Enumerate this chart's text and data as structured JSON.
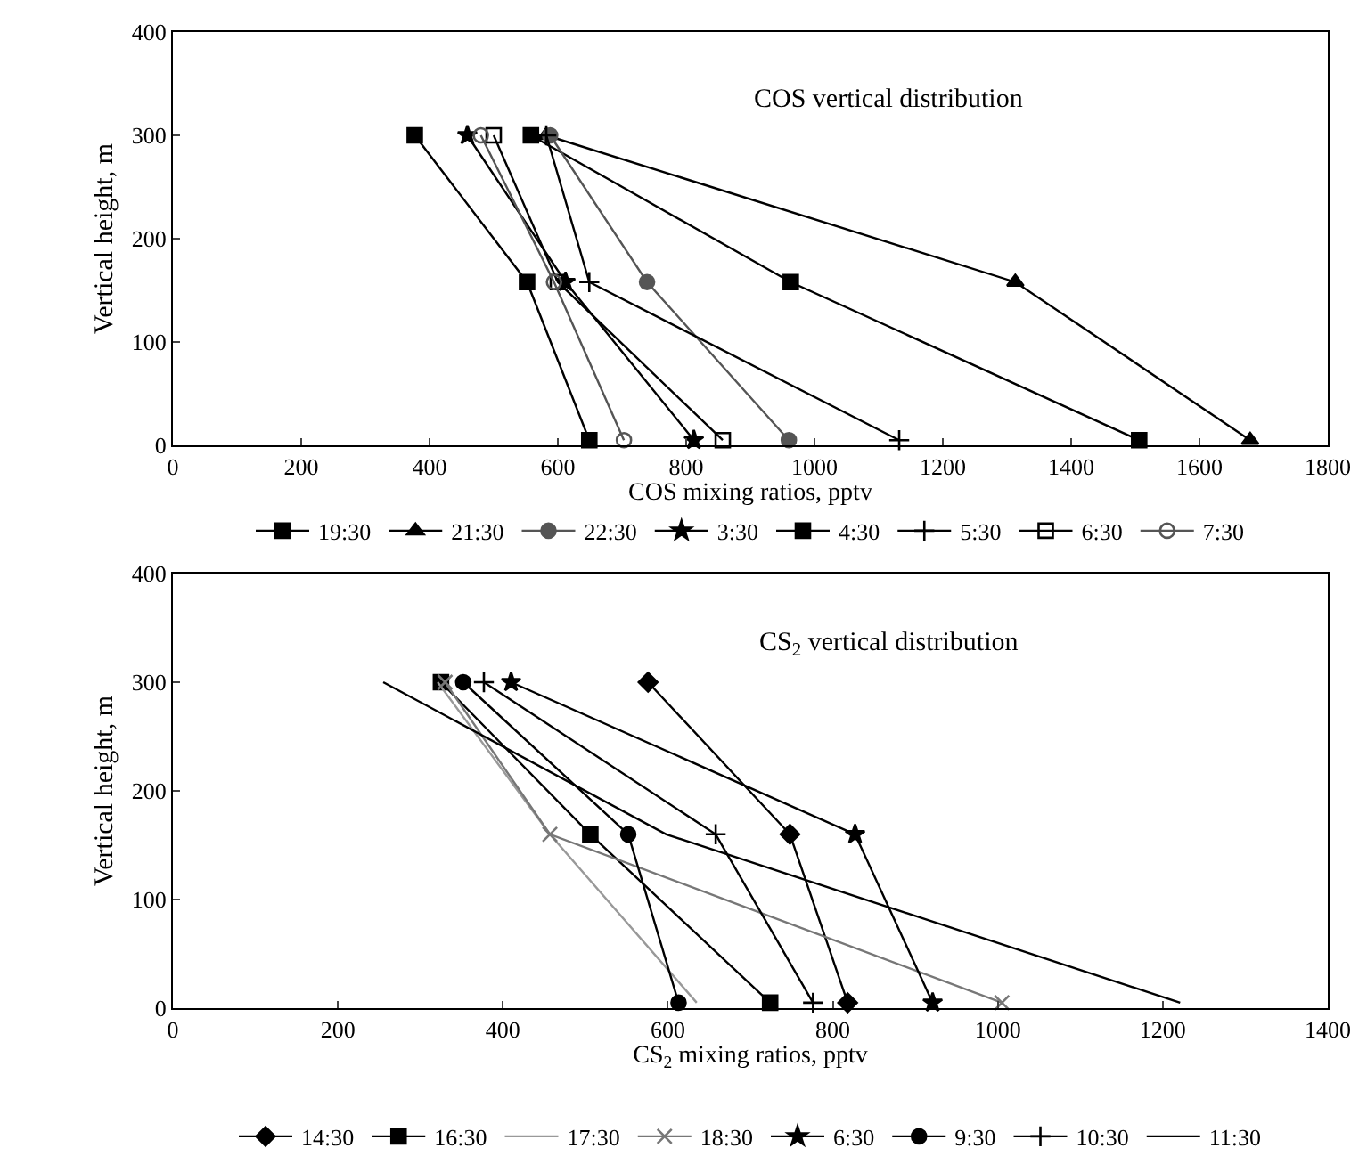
{
  "chart_data": [
    {
      "type": "line",
      "title": "COS vertical distribution",
      "xlabel": "COS mixing ratios, pptv",
      "ylabel": "Vertical height, m",
      "xlim": [
        0,
        1800
      ],
      "xticks": [
        0,
        200,
        400,
        600,
        800,
        1000,
        1200,
        1400,
        1600,
        1800
      ],
      "ylim": [
        0,
        400
      ],
      "yticks": [
        0,
        100,
        200,
        300,
        400
      ],
      "legend": "bottom",
      "line_style": "solid",
      "series": [
        {
          "name": "19:30",
          "color": "#000000",
          "marker": "square",
          "x": [
            558,
            963,
            1506
          ],
          "values": [
            300,
            158,
            5
          ]
        },
        {
          "name": "21:30",
          "color": "#000000",
          "marker": "triangle",
          "x": [
            582,
            1313,
            1679
          ],
          "values": [
            300,
            158,
            5
          ]
        },
        {
          "name": "22:30",
          "color": "#555555",
          "marker": "circle",
          "x": [
            588,
            739,
            960
          ],
          "values": [
            300,
            158,
            5
          ]
        },
        {
          "name": "3:30",
          "color": "#000000",
          "marker": "star",
          "x": [
            459,
            612,
            812
          ],
          "values": [
            300,
            158,
            5
          ]
        },
        {
          "name": "4:30",
          "color": "#000000",
          "marker": "square",
          "x": [
            377,
            552,
            649
          ],
          "values": [
            300,
            158,
            5
          ]
        },
        {
          "name": "5:30",
          "color": "#000000",
          "marker": "cross",
          "x": [
            582,
            649,
            1132
          ],
          "values": [
            300,
            158,
            5
          ]
        },
        {
          "name": "6:30",
          "color": "#000000",
          "marker": "square-open",
          "x": [
            500,
            600,
            857
          ],
          "values": [
            300,
            158,
            5
          ]
        },
        {
          "name": "7:30",
          "color": "#555555",
          "marker": "circle-open",
          "x": [
            480,
            594,
            703
          ],
          "values": [
            300,
            158,
            5
          ]
        }
      ]
    },
    {
      "type": "line",
      "title": "CS$_{2}$ vertical distribution",
      "xlabel": "CS$_{2}$ mixing ratios, pptv",
      "ylabel": "Vertical height, m",
      "xlim": [
        0,
        1400
      ],
      "xticks": [
        0,
        200,
        400,
        600,
        800,
        1000,
        1200,
        1400
      ],
      "ylim": [
        0,
        400
      ],
      "yticks": [
        0,
        100,
        200,
        300,
        400
      ],
      "legend": "bottom",
      "line_style": "solid",
      "series": [
        {
          "name": "14:30",
          "color": "#000000",
          "marker": "diamond",
          "x": [
            576,
            748,
            818
          ],
          "values": [
            300,
            160,
            5
          ]
        },
        {
          "name": "16:30",
          "color": "#000000",
          "marker": "square",
          "x": [
            325,
            506,
            724
          ],
          "values": [
            300,
            160,
            5
          ]
        },
        {
          "name": "17:30",
          "color": "#999999",
          "marker": "none",
          "x": [
            321,
            457,
            635
          ],
          "values": [
            300,
            160,
            5
          ]
        },
        {
          "name": "18:30",
          "color": "#777777",
          "marker": "x",
          "x": [
            330,
            457,
            1005
          ],
          "values": [
            300,
            160,
            5
          ]
        },
        {
          "name": "6:30",
          "color": "#000000",
          "marker": "star",
          "x": [
            410,
            827,
            921
          ],
          "values": [
            300,
            160,
            5
          ]
        },
        {
          "name": "9:30",
          "color": "#000000",
          "marker": "circle",
          "x": [
            352,
            552,
            613
          ],
          "values": [
            300,
            160,
            5
          ]
        },
        {
          "name": "10:30",
          "color": "#000000",
          "marker": "cross",
          "x": [
            377,
            658,
            776
          ],
          "values": [
            300,
            160,
            5
          ]
        },
        {
          "name": "11:30",
          "color": "#000000",
          "marker": "none",
          "x": [
            255,
            598,
            1221
          ],
          "values": [
            300,
            160,
            5
          ]
        }
      ]
    }
  ]
}
